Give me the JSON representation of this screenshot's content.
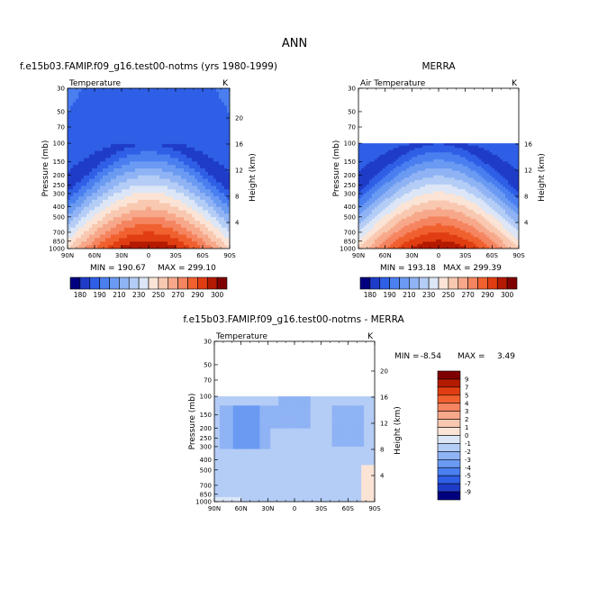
{
  "page": {
    "title": "ANN",
    "panel1_title": "f.e15b03.FAMIP.f09_g16.test00-notms (yrs 1980-1999)",
    "panel2_title": "MERRA",
    "panel3_title": "f.e15b03.FAMIP.f09_g16.test00-notms - MERRA"
  },
  "colors": {
    "full_scale": [
      "#00007f",
      "#1f3cc8",
      "#2f5fe6",
      "#4a7ff0",
      "#6a9af2",
      "#8fb3f4",
      "#b4cdf6",
      "#dce6f6",
      "#fbe4d6",
      "#f9c8b0",
      "#f7a88a",
      "#f58460",
      "#f0612f",
      "#e03e12",
      "#b31a00",
      "#7f0000"
    ],
    "diff_scale": [
      "#00007f",
      "#1f3cc8",
      "#2f5fe6",
      "#4a7ff0",
      "#6a9af2",
      "#8fb3f4",
      "#b4cdf6",
      "#dce6f6",
      "#fbe4d6",
      "#f9c8b0",
      "#f7a88a",
      "#f58460",
      "#f0612f",
      "#e03e12",
      "#b31a00",
      "#7f0000"
    ]
  },
  "chart_data": [
    {
      "type": "heatmap",
      "title": "f.e15b03.FAMIP.f09_g16.test00-notms (yrs 1980-1999)",
      "left_label": "Temperature",
      "right_label": "K",
      "xlabel": "",
      "ylabel": "Pressure (mb)",
      "y2label": "Height (km)",
      "x_ticks": [
        "90N",
        "60N",
        "30N",
        "0",
        "30S",
        "60S",
        "90S"
      ],
      "y_ticks": [
        30,
        50,
        70,
        100,
        150,
        200,
        250,
        300,
        400,
        500,
        700,
        850,
        1000
      ],
      "y2_ticks": [
        4,
        8,
        12,
        16,
        20
      ],
      "ylim": [
        1000,
        30
      ],
      "min": 190.67,
      "max": 299.1,
      "levels": [
        180,
        190,
        200,
        210,
        220,
        230,
        240,
        250,
        260,
        270,
        280,
        290,
        300
      ]
    },
    {
      "type": "heatmap",
      "title": "MERRA",
      "left_label": "Air Temperature",
      "right_label": "K",
      "xlabel": "",
      "ylabel": "Pressure (mb)",
      "y2label": "Height (km)",
      "x_ticks": [
        "90N",
        "60N",
        "30N",
        "0",
        "30S",
        "60S",
        "90S"
      ],
      "y_ticks": [
        30,
        50,
        70,
        100,
        150,
        200,
        250,
        300,
        400,
        500,
        700,
        850,
        1000
      ],
      "y2_ticks": [
        4,
        8,
        12,
        16
      ],
      "ylim": [
        1000,
        30
      ],
      "min": 193.18,
      "max": 299.39,
      "levels": [
        180,
        190,
        200,
        210,
        220,
        230,
        240,
        250,
        260,
        270,
        280,
        290,
        300
      ]
    },
    {
      "type": "heatmap",
      "title": "f.e15b03.FAMIP.f09_g16.test00-notms - MERRA",
      "left_label": "Temperature",
      "right_label": "K",
      "xlabel": "",
      "ylabel": "Pressure (mb)",
      "y2label": "Height (km)",
      "x_ticks": [
        "90N",
        "60N",
        "30N",
        "0",
        "30S",
        "60S",
        "90S"
      ],
      "y_ticks": [
        30,
        50,
        70,
        100,
        150,
        200,
        250,
        300,
        400,
        500,
        700,
        850,
        1000
      ],
      "y2_ticks": [
        4,
        8,
        12,
        16,
        20
      ],
      "ylim": [
        1000,
        30
      ],
      "min": -8.54,
      "max": 3.49,
      "levels": [
        -9,
        -7,
        -5,
        -4,
        -3,
        -2,
        -1,
        0,
        1,
        2,
        3,
        4,
        5,
        7,
        9
      ]
    }
  ],
  "colorbars": {
    "top_labels": [
      "180",
      "190",
      "210",
      "230",
      "250",
      "270",
      "290",
      "300"
    ],
    "diff_labels": [
      "9",
      "7",
      "5",
      "4",
      "3",
      "2",
      "1",
      "0",
      "-1",
      "-2",
      "-3",
      "-4",
      "-5",
      "-7",
      "-9"
    ]
  },
  "stats": {
    "p1_min_label": "MIN = 190.67",
    "p1_max_label": "MAX = 299.10",
    "p2_min_label": "MIN = 193.18",
    "p2_max_label": "MAX = 299.39",
    "p3_min_label": "MIN =",
    "p3_min_value": "-8.54",
    "p3_max_label": "MAX =",
    "p3_max_value": "3.49"
  }
}
